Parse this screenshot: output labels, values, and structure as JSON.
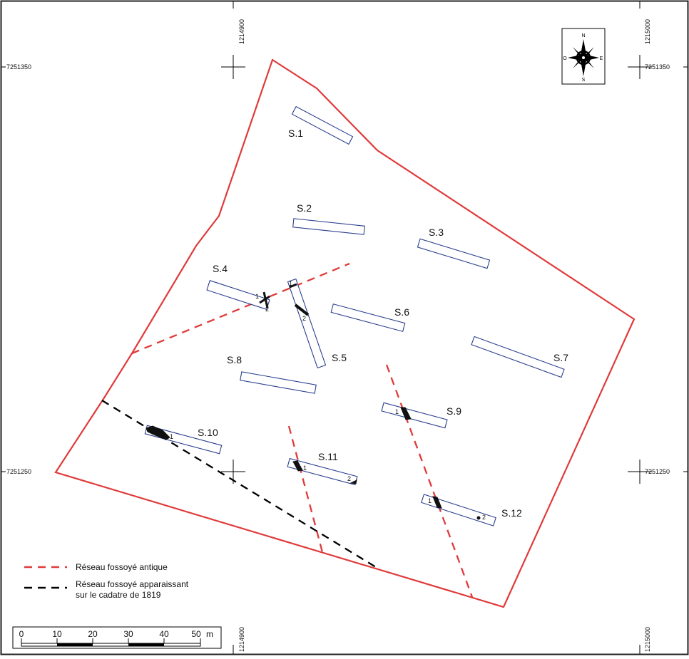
{
  "colors": {
    "frame": "#222222",
    "boundary": "#e03a3a",
    "trench": "#2b3f8f",
    "ancient_ditch": "#e03a3a",
    "cadastre_ditch": "#000000",
    "feature_fill": "#111111"
  },
  "coordinates": {
    "x_top_left": "1214900",
    "x_top_right": "1215000",
    "x_bottom_left": "1214900",
    "x_bottom_right": "1215000",
    "y_upper_left": "7251350",
    "y_upper_right": "7251350",
    "y_lower_left": "7251250",
    "y_lower_right": "7251250"
  },
  "compass": {
    "icon": "compass-rose-icon",
    "n": "N",
    "s": "S",
    "e": "E",
    "o": "O"
  },
  "trenches": [
    {
      "id": "S.1"
    },
    {
      "id": "S.2"
    },
    {
      "id": "S.3"
    },
    {
      "id": "S.4"
    },
    {
      "id": "S.5"
    },
    {
      "id": "S.6"
    },
    {
      "id": "S.7"
    },
    {
      "id": "S.8"
    },
    {
      "id": "S.9"
    },
    {
      "id": "S.10"
    },
    {
      "id": "S.11"
    },
    {
      "id": "S.12"
    }
  ],
  "feature_numbers": {
    "s4_1": "1",
    "s4_2": "2",
    "s5_1": "1",
    "s5_2": "2",
    "s9_1": "1",
    "s10_1": "1",
    "s11_1": "1",
    "s11_2": "2",
    "s12_1": "1",
    "s12_2": "2"
  },
  "legend": {
    "ancient_label": "Réseau fossoyé antique",
    "cadastre_label_line1": "Réseau fossoyé apparaissant",
    "cadastre_label_line2": "sur le cadatre de 1819"
  },
  "scale_bar": {
    "ticks": [
      "0",
      "10",
      "20",
      "30",
      "40",
      "50"
    ],
    "unit": "m"
  }
}
